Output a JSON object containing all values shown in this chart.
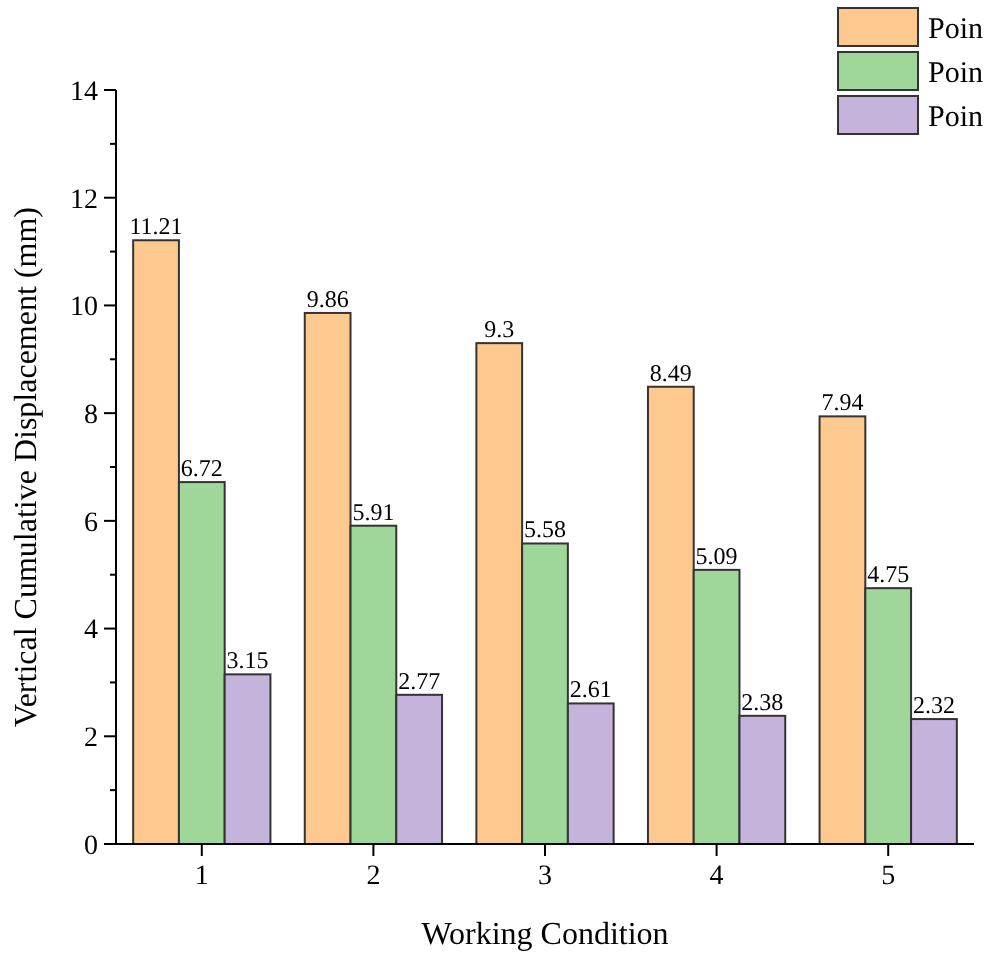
{
  "chart_data": {
    "type": "bar",
    "xlabel": "Working Condition",
    "ylabel": "Vertical Cumulative Displacement (mm)",
    "categories": [
      "1",
      "2",
      "3",
      "4",
      "5"
    ],
    "series": [
      {
        "name": "Poin",
        "color": "#fec98f",
        "values": [
          11.21,
          9.86,
          9.3,
          8.49,
          7.94
        ]
      },
      {
        "name": "Poin",
        "color": "#9fd79b",
        "values": [
          6.72,
          5.91,
          5.58,
          5.09,
          4.75
        ]
      },
      {
        "name": "Poin",
        "color": "#c4b4dc",
        "values": [
          3.15,
          2.77,
          2.61,
          2.38,
          2.32
        ]
      }
    ],
    "ylim": [
      0,
      14
    ],
    "yticks": [
      0,
      {
        "value": 1,
        "label": null
      },
      2,
      {
        "value": 3,
        "label": null
      },
      4,
      {
        "value": 5,
        "label": null
      },
      6,
      {
        "value": 7,
        "label": null
      },
      8,
      {
        "value": 9,
        "label": null
      },
      10,
      {
        "value": 11,
        "label": null
      },
      12,
      {
        "value": 13,
        "label": null
      },
      14
    ],
    "data_labels": true,
    "legend": "top right",
    "grid": false
  }
}
